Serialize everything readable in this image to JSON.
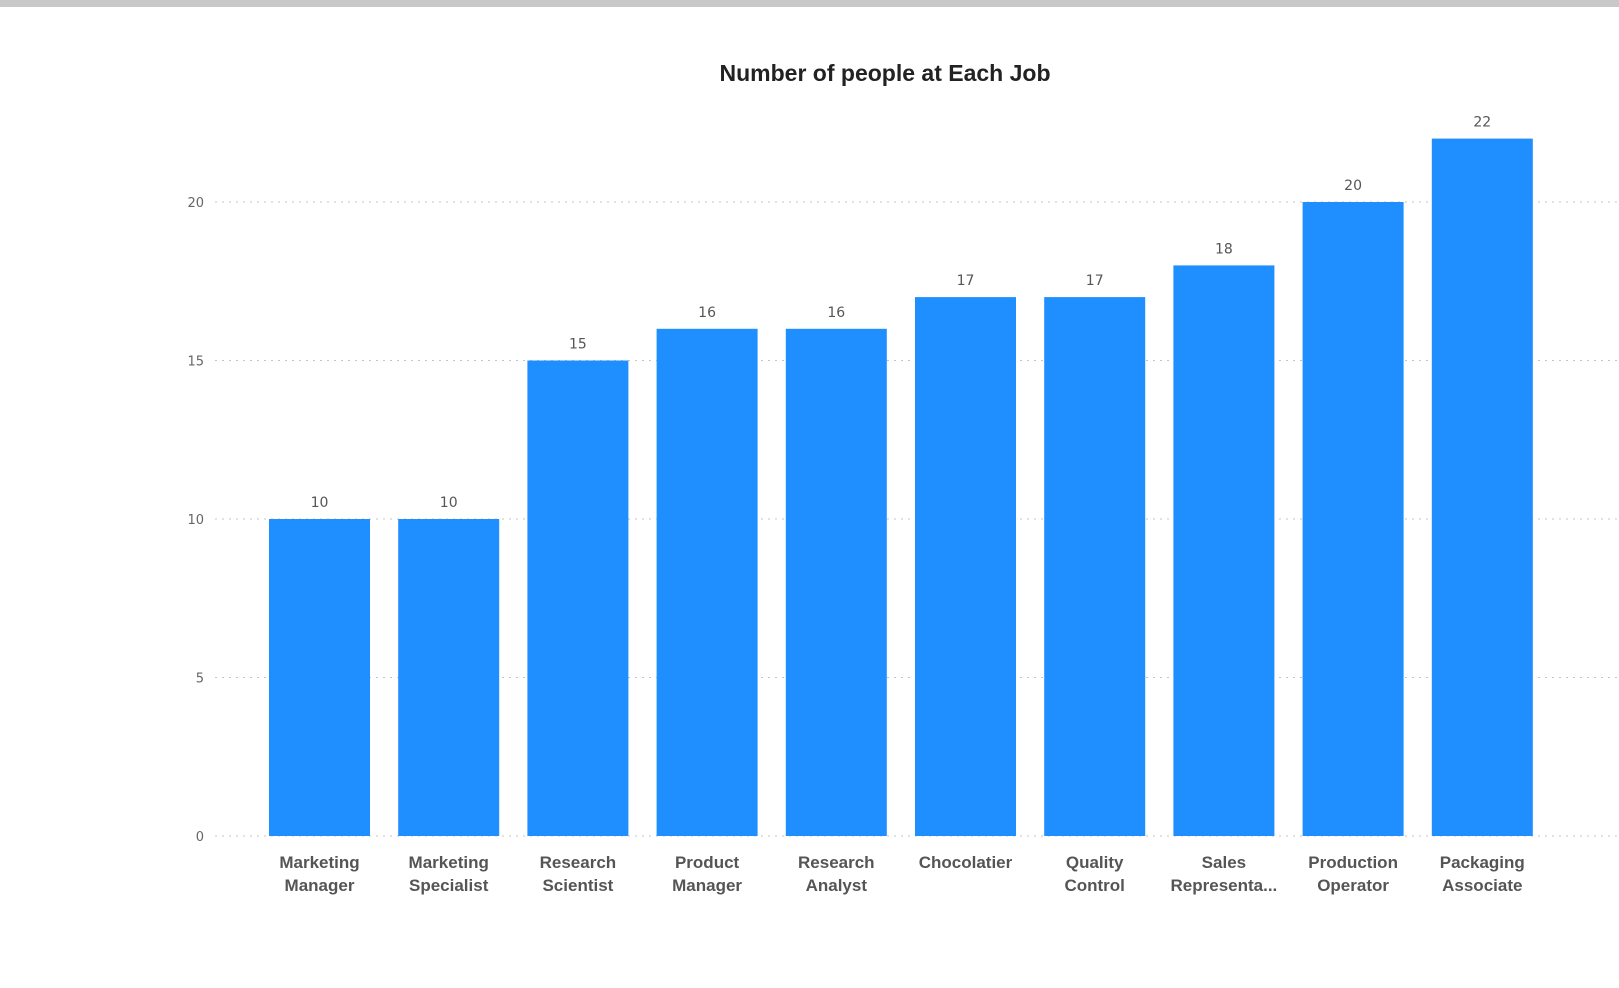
{
  "chart_data": {
    "type": "bar",
    "title": "Number of people at Each Job",
    "categories": [
      [
        "Marketing",
        "Manager"
      ],
      [
        "Marketing",
        "Specialist"
      ],
      [
        "Research",
        "Scientist"
      ],
      [
        "Product",
        "Manager"
      ],
      [
        "Research",
        "Analyst"
      ],
      [
        "Chocolatier"
      ],
      [
        "Quality",
        "Control"
      ],
      [
        "Sales",
        "Representa..."
      ],
      [
        "Production",
        "Operator"
      ],
      [
        "Packaging",
        "Associate"
      ]
    ],
    "values": [
      10,
      10,
      15,
      16,
      16,
      17,
      17,
      18,
      20,
      22
    ],
    "ylim": [
      0,
      22
    ],
    "yticks": [
      0,
      5,
      10,
      15,
      20
    ],
    "grid": true,
    "bar_color": "#1F8FFF"
  }
}
